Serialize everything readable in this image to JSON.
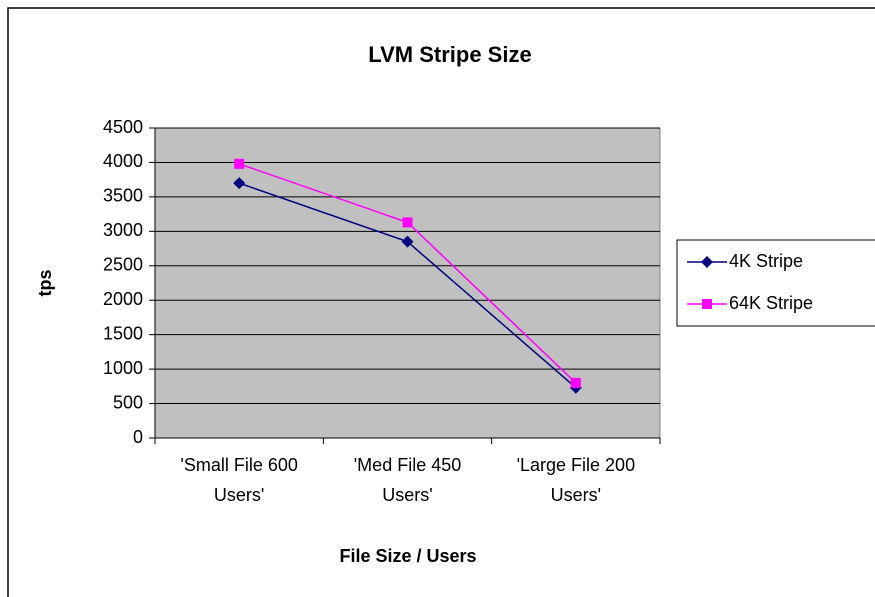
{
  "chart_data": {
    "type": "line",
    "title": "LVM Stripe Size",
    "x_label": "File Size / Users",
    "y_label": "tps",
    "categories": [
      "'Small File 600 Users'",
      "'Med File 450 Users'",
      "'Large File 200 Users'"
    ],
    "series": [
      {
        "name": "4K Stripe",
        "color": "#000080",
        "marker": "diamond",
        "values": [
          3700,
          2850,
          730
        ]
      },
      {
        "name": "64K Stripe",
        "color": "#ff00ff",
        "marker": "square",
        "values": [
          3980,
          3130,
          800
        ]
      }
    ],
    "ylim": [
      0,
      4500
    ],
    "yticks": [
      0,
      500,
      1000,
      1500,
      2000,
      2500,
      3000,
      3500,
      4000,
      4500
    ],
    "grid": true,
    "plot_background": "#c0c0c0",
    "legend": "right"
  }
}
